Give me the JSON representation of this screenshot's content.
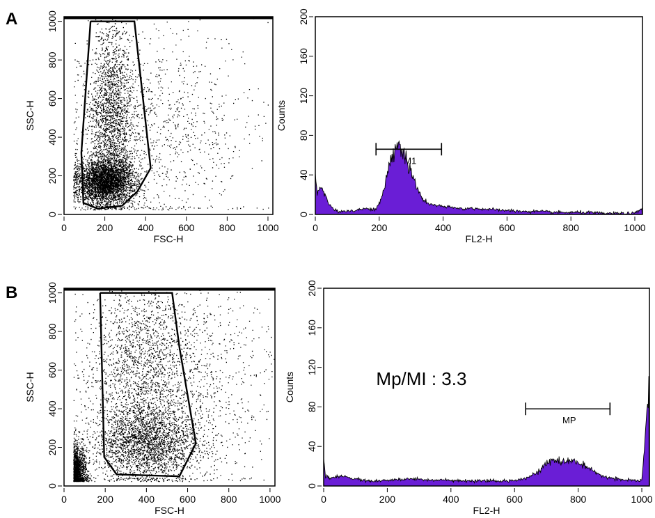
{
  "figure": {
    "panels": [
      {
        "label": "A"
      },
      {
        "label": "B"
      }
    ]
  },
  "chart_data": [
    {
      "type": "scatter",
      "panel": "A",
      "xlabel": "FSC-H",
      "ylabel": "SSC-H",
      "xlim": [
        0,
        1024
      ],
      "ylim": [
        0,
        1024
      ],
      "xticks": [
        0,
        200,
        400,
        600,
        800,
        1000
      ],
      "yticks": [
        0,
        200,
        400,
        600,
        800,
        1000
      ],
      "density_clusters": [
        {
          "x": 200,
          "y": 170,
          "sx": 70,
          "sy": 60,
          "weight": 0.55
        },
        {
          "x": 230,
          "y": 520,
          "sx": 55,
          "sy": 230,
          "weight": 0.3
        },
        {
          "x": 480,
          "y": 450,
          "sx": 220,
          "sy": 260,
          "weight": 0.15
        }
      ],
      "gate_polygon": [
        [
          130,
          1000
        ],
        [
          345,
          1000
        ],
        [
          425,
          240
        ],
        [
          360,
          120
        ],
        [
          285,
          45
        ],
        [
          165,
          30
        ],
        [
          95,
          60
        ],
        [
          85,
          320
        ],
        [
          130,
          1000
        ]
      ],
      "gate_label": ""
    },
    {
      "type": "area",
      "panel": "A",
      "xlabel": "FL2-H",
      "ylabel": "Counts",
      "xlim": [
        0,
        1024
      ],
      "ylim": [
        0,
        200
      ],
      "xticks": [
        0,
        200,
        400,
        600,
        800,
        1000
      ],
      "yticks": [
        0,
        40,
        80,
        120,
        160,
        200
      ],
      "color": "#6a1ed6",
      "x": [
        0,
        5,
        15,
        25,
        40,
        60,
        80,
        120,
        160,
        190,
        210,
        230,
        250,
        265,
        280,
        300,
        320,
        340,
        360,
        400,
        450,
        500,
        550,
        600,
        650,
        700,
        750,
        800,
        850,
        900,
        950,
        1000,
        1023
      ],
      "y": [
        42,
        22,
        28,
        25,
        12,
        4,
        3,
        4,
        6,
        5,
        18,
        48,
        68,
        70,
        60,
        42,
        25,
        14,
        10,
        8,
        6,
        6,
        5,
        4,
        3,
        3,
        2,
        2,
        2,
        1,
        1,
        1,
        6
      ],
      "marker": {
        "label": "M1",
        "start": 190,
        "end": 395,
        "level": 66
      },
      "annotation": ""
    },
    {
      "type": "scatter",
      "panel": "B",
      "xlabel": "FSC-H",
      "ylabel": "SSC-H",
      "xlim": [
        0,
        1024
      ],
      "ylim": [
        0,
        1024
      ],
      "xticks": [
        0,
        200,
        400,
        600,
        800,
        1000
      ],
      "yticks": [
        0,
        200,
        400,
        600,
        800,
        1000
      ],
      "density_clusters": [
        {
          "x": 60,
          "y": 80,
          "sx": 25,
          "sy": 60,
          "weight": 0.22
        },
        {
          "x": 400,
          "y": 220,
          "sx": 130,
          "sy": 90,
          "weight": 0.33
        },
        {
          "x": 370,
          "y": 580,
          "sx": 130,
          "sy": 260,
          "weight": 0.3
        },
        {
          "x": 600,
          "y": 550,
          "sx": 230,
          "sy": 280,
          "weight": 0.15
        }
      ],
      "gate_polygon": [
        [
          175,
          1000
        ],
        [
          525,
          1000
        ],
        [
          560,
          720
        ],
        [
          640,
          220
        ],
        [
          560,
          50
        ],
        [
          255,
          60
        ],
        [
          195,
          150
        ],
        [
          175,
          1000
        ]
      ],
      "gate_label": ""
    },
    {
      "type": "area",
      "panel": "B",
      "xlabel": "FL2-H",
      "ylabel": "Counts",
      "xlim": [
        0,
        1024
      ],
      "ylim": [
        0,
        200
      ],
      "xticks": [
        0,
        200,
        400,
        600,
        800,
        1000
      ],
      "yticks": [
        0,
        40,
        80,
        120,
        160,
        200
      ],
      "color": "#6a1ed6",
      "x": [
        0,
        5,
        30,
        60,
        100,
        140,
        180,
        220,
        260,
        300,
        340,
        380,
        420,
        460,
        500,
        540,
        580,
        620,
        650,
        680,
        700,
        720,
        740,
        760,
        780,
        800,
        830,
        860,
        900,
        950,
        1000,
        1023
      ],
      "y": [
        30,
        10,
        8,
        10,
        7,
        5,
        5,
        6,
        7,
        7,
        6,
        6,
        5,
        5,
        5,
        5,
        5,
        7,
        10,
        16,
        22,
        26,
        25,
        24,
        26,
        24,
        18,
        12,
        8,
        6,
        5,
        100
      ],
      "marker": {
        "label": "MP",
        "start": 635,
        "end": 900,
        "level": 78
      },
      "annotation": "Mp/MI : 3.3"
    }
  ]
}
